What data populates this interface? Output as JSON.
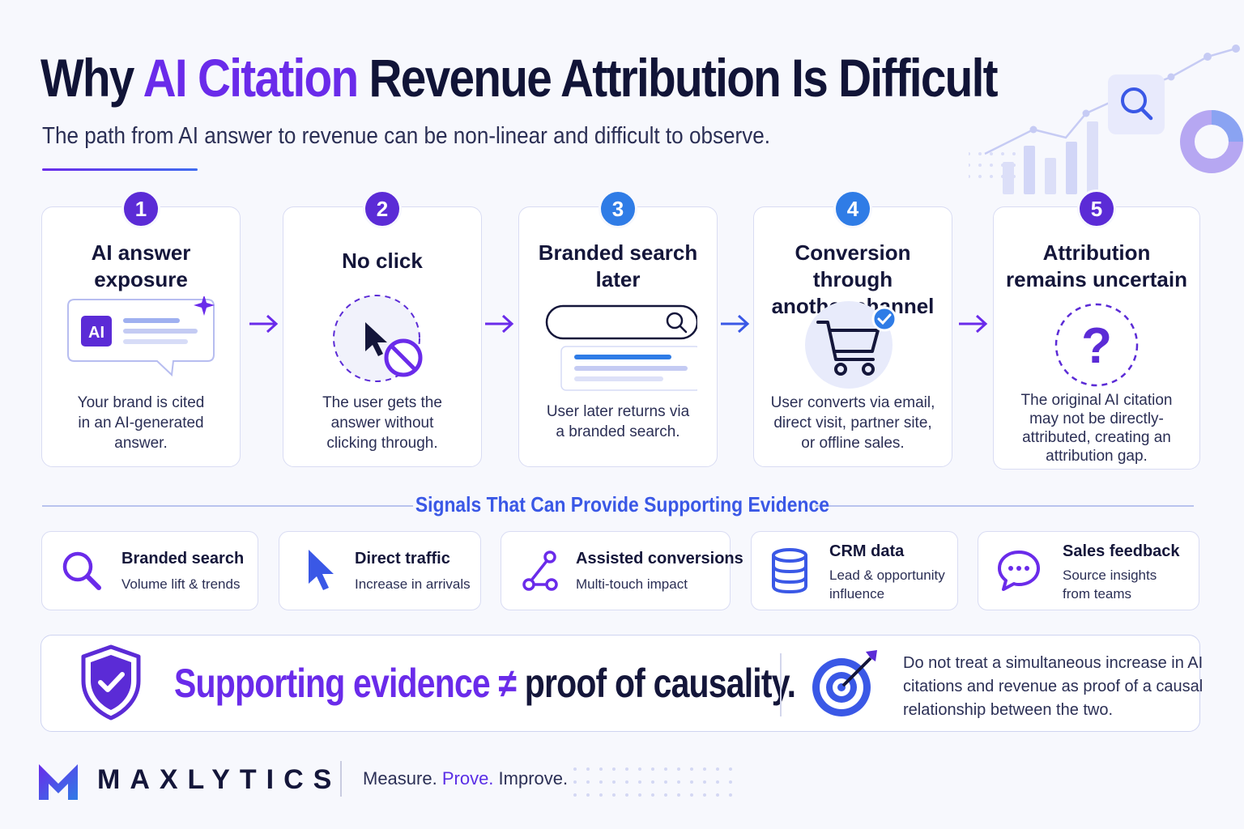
{
  "header": {
    "title_pre": "Why ",
    "title_accent": "AI Citation",
    "title_post": " Revenue Attribution Is Difficult",
    "subtitle": "The path from AI answer to revenue can be non-linear and difficult to observe."
  },
  "steps": [
    {
      "num": "1",
      "title": [
        "AI answer",
        "exposure"
      ],
      "icon_text": "AI",
      "desc": [
        "Your brand is cited",
        "in an AI-generated",
        "answer."
      ],
      "color": "#5b2bd6"
    },
    {
      "num": "2",
      "title": [
        "No click"
      ],
      "desc": [
        "The user gets the",
        "answer without",
        "clicking through."
      ],
      "color": "#5b2bd6"
    },
    {
      "num": "3",
      "title": [
        "Branded search",
        "later"
      ],
      "desc": [
        "User later returns via",
        "a branded search."
      ],
      "color": "#2f7ce6"
    },
    {
      "num": "4",
      "title": [
        "Conversion through",
        "another channel"
      ],
      "desc": [
        "User converts via email,",
        "direct visit, partner site,",
        "or offline sales."
      ],
      "color": "#2f7ce6"
    },
    {
      "num": "5",
      "title": [
        "Attribution",
        "remains uncertain"
      ],
      "icon_text": "?",
      "desc": [
        "The original AI citation",
        "may not be directly-",
        "attributed, creating an",
        "attribution gap."
      ],
      "color": "#5b2bd6"
    }
  ],
  "signals": {
    "title": "Signals That Can Provide Supporting Evidence",
    "items": [
      {
        "title": "Branded search",
        "desc": [
          "Volume lift & trends"
        ],
        "icon": "search-icon"
      },
      {
        "title": "Direct traffic",
        "desc": [
          "Increase in arrivals"
        ],
        "icon": "cursor-icon"
      },
      {
        "title": "Assisted conversions",
        "desc": [
          "Multi-touch impact"
        ],
        "icon": "network-icon"
      },
      {
        "title": "CRM data",
        "desc": [
          "Lead & opportunity",
          "influence"
        ],
        "icon": "database-icon"
      },
      {
        "title": "Sales feedback",
        "desc": [
          "Source insights",
          "from teams"
        ],
        "icon": "chat-icon"
      }
    ]
  },
  "banner": {
    "headline_purple": "Supporting evidence ≠",
    "headline_dark": " proof of causality.",
    "note": [
      "Do not treat a simultaneous increase in AI",
      "citations and revenue as proof of a causal",
      "relationship between the two."
    ]
  },
  "footer": {
    "brand": "MAXLYTICS",
    "tagline_a": "Measure. ",
    "tagline_b": "Prove.",
    "tagline_c": " Improve."
  },
  "colors": {
    "purple": "#6a2bea",
    "blue": "#3a58e6",
    "dark": "#14163a"
  }
}
